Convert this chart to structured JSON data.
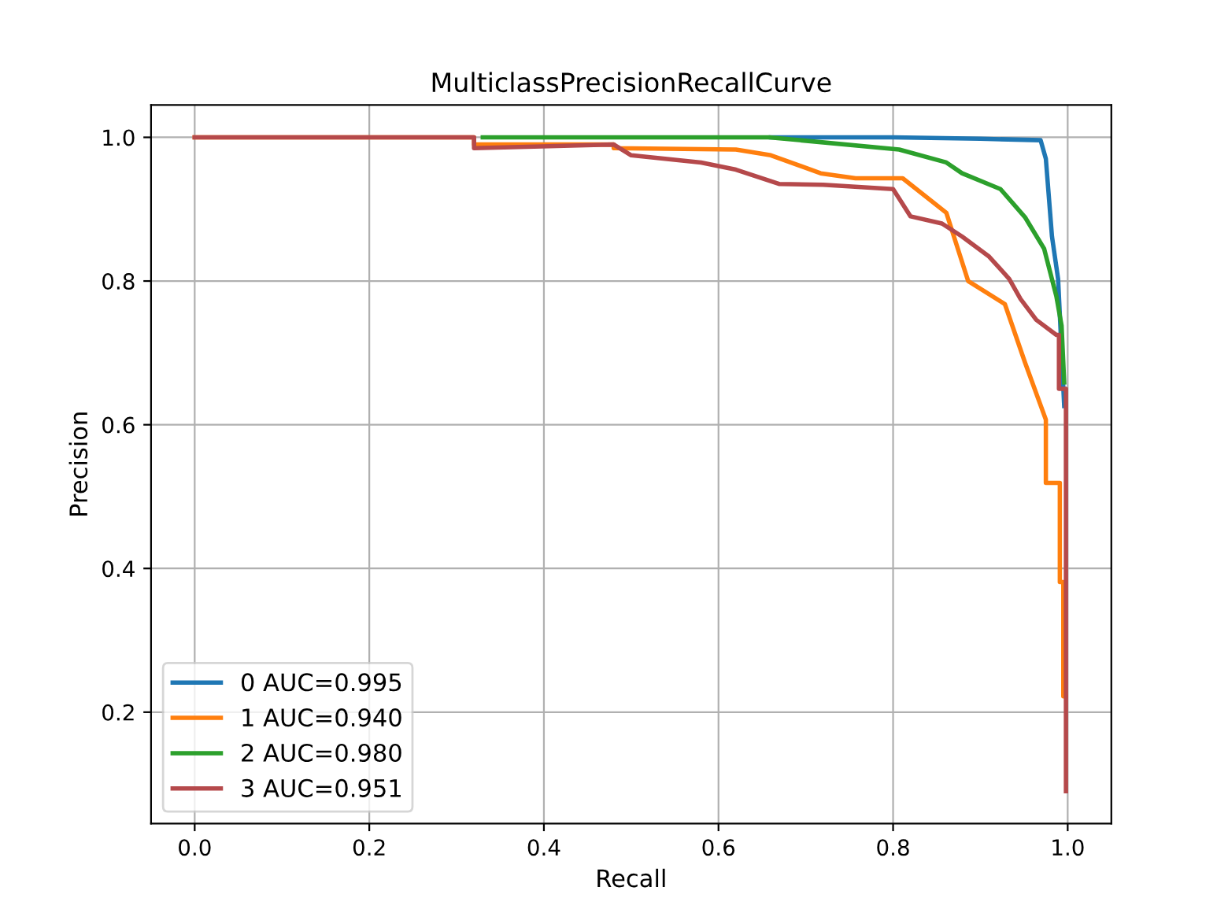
{
  "chart_data": {
    "type": "line",
    "title": "MulticlassPrecisionRecallCurve",
    "xlabel": "Recall",
    "ylabel": "Precision",
    "xlim": [
      -0.05,
      1.05
    ],
    "ylim": [
      0.045,
      1.045
    ],
    "xticks": [
      {
        "value": 0,
        "label": "0.0"
      },
      0.2,
      0.4,
      0.6,
      0.8,
      {
        "value": 1,
        "label": "1.0"
      }
    ],
    "yticks": [
      0.2,
      0.4,
      0.6,
      0.8,
      {
        "value": 1,
        "label": "1.0"
      }
    ],
    "grid": true,
    "legend": "bottom left",
    "line_style": "solid",
    "series": [
      {
        "name": "0 AUC=0.995",
        "color": "#1f77b4",
        "x": [
          0.66,
          0.8,
          0.9,
          0.969,
          0.975,
          0.982,
          0.989,
          0.991,
          0.996
        ],
        "values": [
          1.0,
          1.0,
          0.998,
          0.996,
          0.97,
          0.862,
          0.803,
          0.753,
          0.626
        ]
      },
      {
        "name": "1 AUC=0.940",
        "color": "#ff7f0e",
        "x": [
          0.0,
          0.32,
          0.32,
          0.48,
          0.48,
          0.62,
          0.66,
          0.717,
          0.757,
          0.811,
          0.861,
          0.886,
          0.928,
          0.951,
          0.975,
          0.975,
          0.991,
          0.991,
          0.995,
          0.995,
          0.998
        ],
        "values": [
          1.0,
          1.0,
          0.99,
          0.99,
          0.985,
          0.983,
          0.975,
          0.95,
          0.943,
          0.943,
          0.895,
          0.8,
          0.768,
          0.687,
          0.607,
          0.519,
          0.519,
          0.381,
          0.381,
          0.222,
          0.222
        ]
      },
      {
        "name": "2 AUC=0.980",
        "color": "#2ca02c",
        "x": [
          0.33,
          0.658,
          0.807,
          0.861,
          0.879,
          0.923,
          0.951,
          0.973,
          0.987,
          0.993,
          0.996
        ],
        "values": [
          1.0,
          1.0,
          0.983,
          0.965,
          0.95,
          0.928,
          0.889,
          0.845,
          0.779,
          0.738,
          0.659
        ]
      },
      {
        "name": "3 AUC=0.951",
        "color": "#b5494b",
        "x": [
          0.0,
          0.32,
          0.32,
          0.48,
          0.5,
          0.58,
          0.62,
          0.67,
          0.72,
          0.8,
          0.82,
          0.856,
          0.879,
          0.91,
          0.933,
          0.946,
          0.964,
          0.987,
          0.99,
          0.99,
          0.998,
          0.998
        ],
        "values": [
          1.0,
          1.0,
          0.985,
          0.99,
          0.975,
          0.965,
          0.955,
          0.935,
          0.934,
          0.928,
          0.89,
          0.88,
          0.862,
          0.834,
          0.803,
          0.775,
          0.746,
          0.725,
          0.725,
          0.65,
          0.65,
          0.09
        ]
      }
    ]
  }
}
